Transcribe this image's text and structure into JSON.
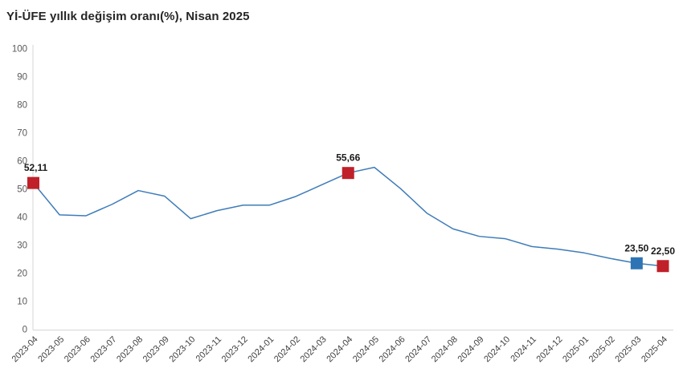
{
  "title": "Yİ-ÜFE yıllık değişim oranı(%), Nisan 2025",
  "chart_data": {
    "type": "line",
    "title": "Yİ-ÜFE yıllık değişim oranı(%), Nisan 2025",
    "xlabel": "",
    "ylabel": "",
    "ylim": [
      0,
      100
    ],
    "y_ticks": [
      0,
      10,
      20,
      30,
      40,
      50,
      60,
      70,
      80,
      90,
      100
    ],
    "grid": false,
    "legend": false,
    "line_color": "#3e7cb9",
    "axis_color": "#d6d6d6",
    "categories": [
      "2023-04",
      "2023-05",
      "2023-06",
      "2023-07",
      "2023-08",
      "2023-09",
      "2023-10",
      "2023-11",
      "2023-12",
      "2024-01",
      "2024-02",
      "2024-03",
      "2024-04",
      "2024-05",
      "2024-06",
      "2024-07",
      "2024-08",
      "2024-09",
      "2024-10",
      "2024-11",
      "2024-12",
      "2025-01",
      "2025-02",
      "2025-03",
      "2025-04"
    ],
    "values": [
      52.11,
      40.76,
      40.42,
      44.5,
      49.41,
      47.44,
      39.39,
      42.25,
      44.22,
      44.2,
      47.29,
      51.47,
      55.66,
      57.68,
      50.09,
      41.37,
      35.75,
      33.09,
      32.24,
      29.47,
      28.52,
      27.2,
      25.21,
      23.5,
      22.5
    ],
    "highlighted_points": [
      {
        "category": "2023-04",
        "index": 0,
        "label": "52,11",
        "color": "#c0202a"
      },
      {
        "category": "2024-04",
        "index": 12,
        "label": "55,66",
        "color": "#c0202a"
      },
      {
        "category": "2025-03",
        "index": 23,
        "label": "23,50",
        "color": "#2e74b5"
      },
      {
        "category": "2025-04",
        "index": 24,
        "label": "22,50",
        "color": "#c0202a"
      }
    ]
  }
}
